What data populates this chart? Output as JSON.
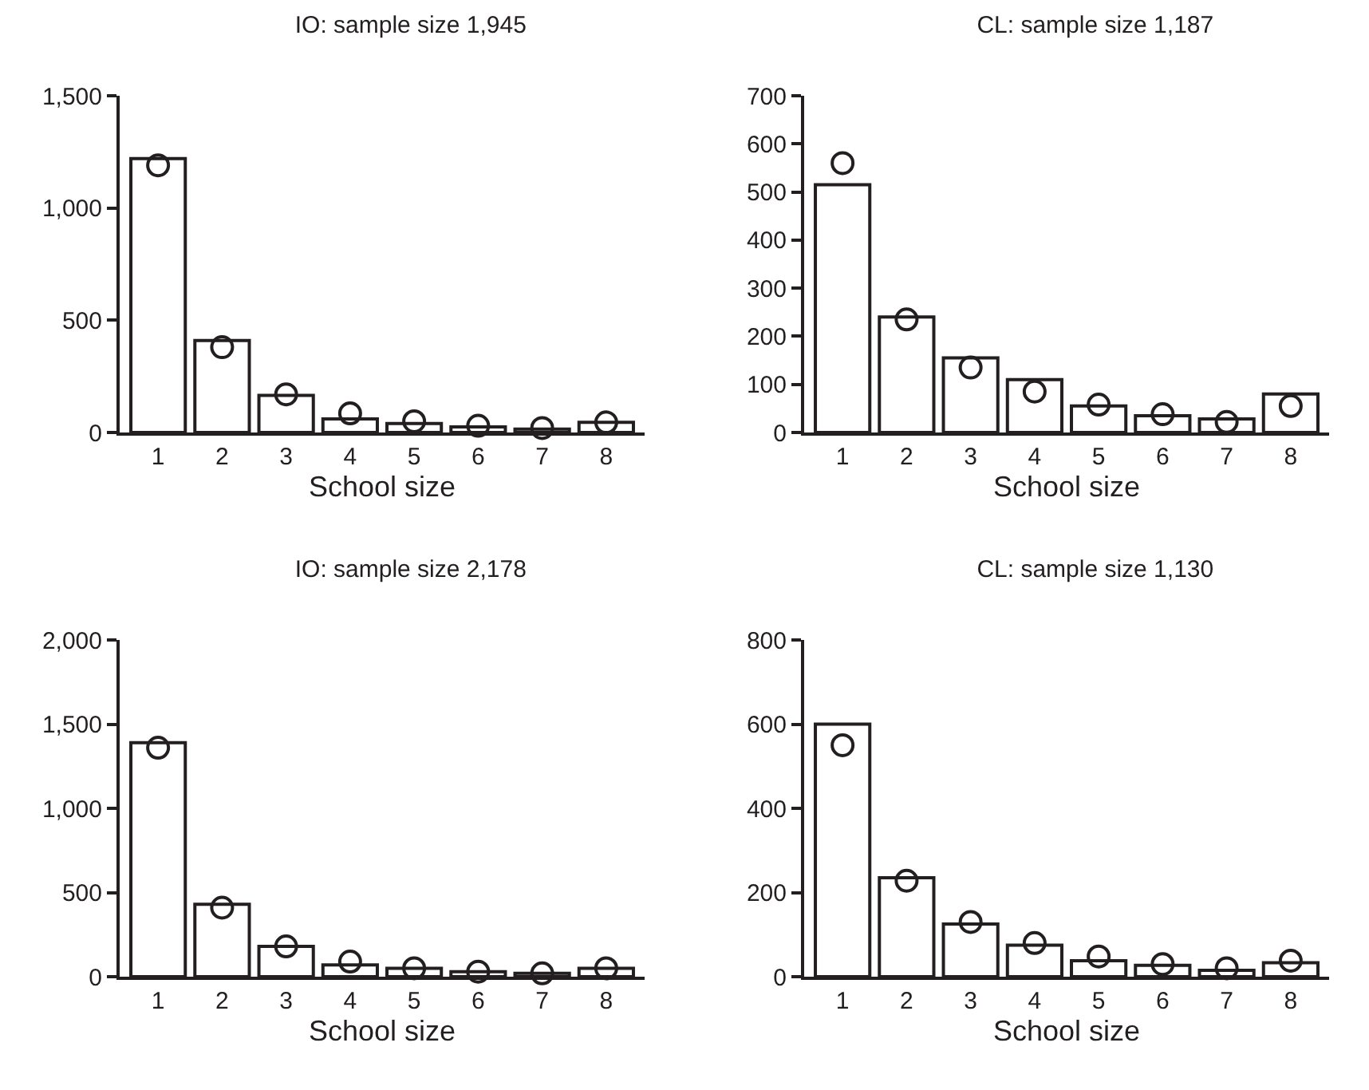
{
  "chart_data": [
    {
      "type": "bar",
      "title": "IO: sample size 1,945",
      "xlabel": "School size",
      "categories": [
        "1",
        "2",
        "3",
        "4",
        "5",
        "6",
        "7",
        "8"
      ],
      "ylim": [
        0,
        1500
      ],
      "yticks": [
        0,
        {
          "value": 500,
          "label": "500"
        },
        {
          "value": 1000,
          "label": "1,000"
        },
        {
          "value": 1500,
          "label": "1,500"
        }
      ],
      "marker": "circle",
      "series": [
        {
          "color": "#ffffff",
          "values": [
            1220,
            410,
            165,
            60,
            40,
            25,
            15,
            45
          ]
        },
        {
          "type": "scatter",
          "color": "#231f20",
          "values": [
            1190,
            380,
            170,
            85,
            50,
            30,
            20,
            45
          ]
        }
      ]
    },
    {
      "type": "bar",
      "title": "CL: sample size 1,187",
      "xlabel": "School size",
      "categories": [
        "1",
        "2",
        "3",
        "4",
        "5",
        "6",
        "7",
        "8"
      ],
      "ylim": [
        0,
        700
      ],
      "yticks": [
        0,
        100,
        200,
        300,
        400,
        500,
        600,
        700
      ],
      "marker": "circle",
      "series": [
        {
          "color": "#ffffff",
          "values": [
            515,
            240,
            155,
            110,
            55,
            35,
            28,
            80
          ]
        },
        {
          "type": "scatter",
          "color": "#231f20",
          "values": [
            560,
            235,
            135,
            85,
            58,
            38,
            22,
            55
          ]
        }
      ]
    },
    {
      "type": "bar",
      "title": "IO: sample size 2,178",
      "xlabel": "School size",
      "categories": [
        "1",
        "2",
        "3",
        "4",
        "5",
        "6",
        "7",
        "8"
      ],
      "ylim": [
        0,
        2000
      ],
      "yticks": [
        0,
        {
          "value": 500,
          "label": "500"
        },
        {
          "value": 1000,
          "label": "1,000"
        },
        {
          "value": 1500,
          "label": "1,500"
        },
        {
          "value": 2000,
          "label": "2,000"
        }
      ],
      "marker": "circle",
      "series": [
        {
          "color": "#ffffff",
          "values": [
            1390,
            430,
            180,
            70,
            50,
            30,
            20,
            50
          ]
        },
        {
          "type": "scatter",
          "color": "#231f20",
          "values": [
            1360,
            410,
            180,
            90,
            50,
            30,
            20,
            50
          ]
        }
      ]
    },
    {
      "type": "bar",
      "title": "CL: sample size 1,130",
      "xlabel": "School size",
      "categories": [
        "1",
        "2",
        "3",
        "4",
        "5",
        "6",
        "7",
        "8"
      ],
      "ylim": [
        0,
        800
      ],
      "yticks": [
        0,
        200,
        400,
        600,
        800
      ],
      "marker": "circle",
      "series": [
        {
          "color": "#ffffff",
          "values": [
            600,
            235,
            125,
            75,
            38,
            27,
            15,
            33
          ]
        },
        {
          "type": "scatter",
          "color": "#231f20",
          "values": [
            550,
            228,
            130,
            80,
            48,
            30,
            20,
            38
          ]
        }
      ]
    }
  ]
}
